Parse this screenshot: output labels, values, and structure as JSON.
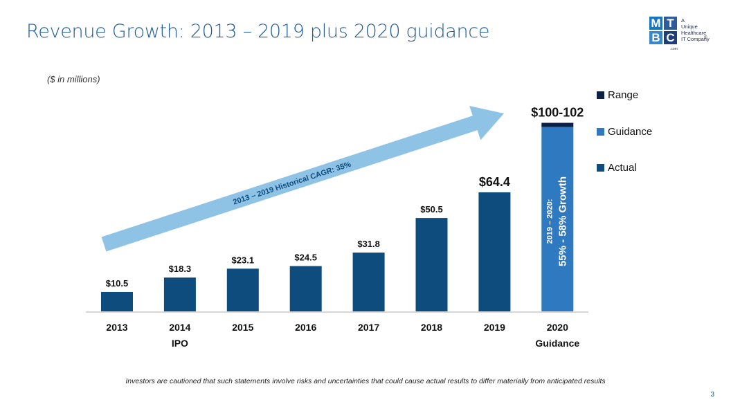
{
  "slide": {
    "title": "Revenue Growth: 2013 – 2019 plus 2020 guidance",
    "units_note": "($ in millions)",
    "footer_note": "Investors are cautioned that such statements involve risks and uncertainties that could cause actual results to differ materially from anticipated results",
    "page_number": "3"
  },
  "logo": {
    "letters": [
      "M",
      "T",
      "B",
      "C"
    ],
    "tagline": [
      "A",
      "Unique",
      "Healthcare",
      "IT Company"
    ],
    "registered_mark": "®",
    "com_text": ".com",
    "colors": [
      "#1b75bb",
      "#2e5c9a",
      "#3a88c8",
      "#1f3f78"
    ]
  },
  "chart_data": {
    "type": "bar",
    "categories": [
      "2013",
      "2014",
      "2015",
      "2016",
      "2017",
      "2018",
      "2019",
      "2020"
    ],
    "category_sublabels": [
      "",
      "IPO",
      "",
      "",
      "",
      "",
      "",
      "Guidance"
    ],
    "series": [
      {
        "name": "Actual",
        "values": [
          10.5,
          18.3,
          23.1,
          24.5,
          31.8,
          50.5,
          64.4,
          null
        ],
        "color": "#0e4c7e"
      },
      {
        "name": "Guidance",
        "values": [
          null,
          null,
          null,
          null,
          null,
          null,
          null,
          100
        ],
        "color": "#2e79bf"
      },
      {
        "name": "Range",
        "values": [
          null,
          null,
          null,
          null,
          null,
          null,
          null,
          2
        ],
        "color": "#0c1f44"
      }
    ],
    "data_labels": [
      "$10.5",
      "$18.3",
      "$23.1",
      "$24.5",
      "$31.8",
      "$50.5",
      "$64.4",
      "$100-102"
    ],
    "legend": {
      "position": "top-right",
      "entries": [
        {
          "label": "Range",
          "color": "#0c1f44"
        },
        {
          "label": "Guidance",
          "color": "#2e79bf"
        },
        {
          "label": "Actual",
          "color": "#0e4c7e"
        }
      ]
    },
    "annotations": {
      "arrow_label": "2013 – 2019 Historical CAGR: 35%",
      "arrow_color": "#8ec3e6",
      "growth_line1": "2019 – 2020:",
      "growth_line2": "55% - 58% Growth"
    },
    "xlabel": "",
    "ylabel": "",
    "ylim": [
      0,
      102
    ],
    "grid": false
  }
}
